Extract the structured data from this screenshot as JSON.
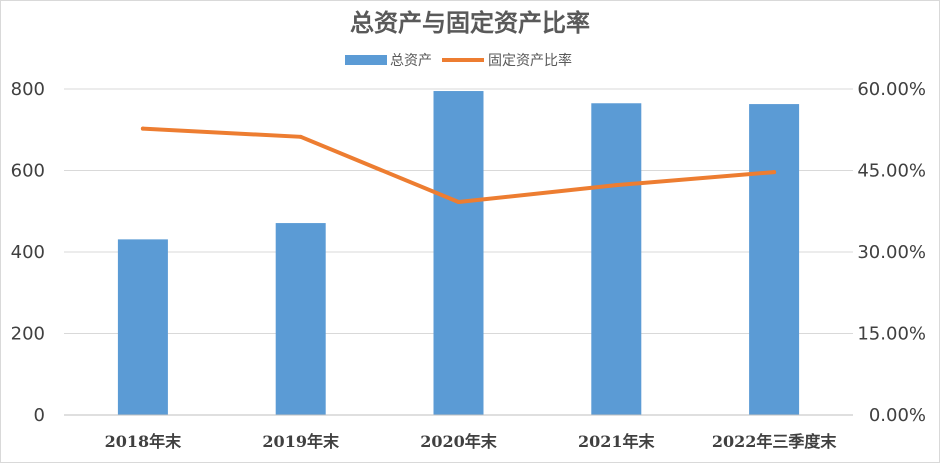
{
  "chart_data": {
    "type": "bar",
    "title": "总资产与固定资产比率",
    "categories": [
      "2018年末",
      "2019年末",
      "2020年末",
      "2021年末",
      "2022年三季度末"
    ],
    "series": [
      {
        "name": "总资产",
        "type": "bar",
        "axis": "left",
        "color": "#5b9bd5",
        "values": [
          431,
          471,
          795,
          765,
          763
        ]
      },
      {
        "name": "固定资产比率",
        "type": "line",
        "axis": "right",
        "color": "#ed7d31",
        "values": [
          0.527,
          0.512,
          0.392,
          0.423,
          0.447
        ]
      }
    ],
    "y_left": {
      "min": 0,
      "max": 800,
      "ticks": [
        0,
        200,
        400,
        600,
        800
      ],
      "tick_labels": [
        "0",
        "200",
        "400",
        "600",
        "800"
      ]
    },
    "y_right": {
      "min": 0,
      "max": 0.6,
      "ticks": [
        0,
        0.15,
        0.3,
        0.45,
        0.6
      ],
      "tick_labels": [
        "0.00%",
        "15.00%",
        "30.00%",
        "45.00%",
        "60.00%"
      ]
    },
    "grid": true,
    "legend": "top-center"
  }
}
